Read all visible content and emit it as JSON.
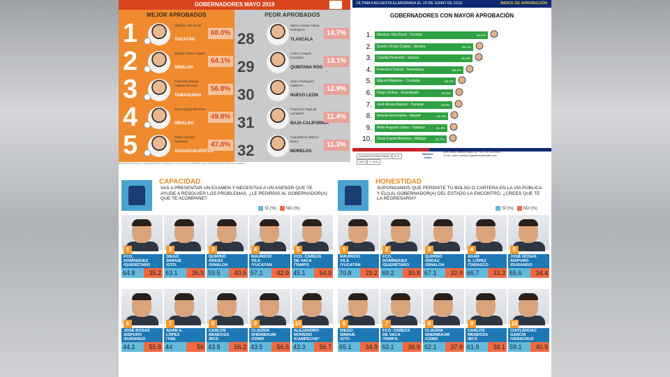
{
  "top_left": {
    "title": "GOBERNADORES MAYO 2019",
    "best_title": "MEJOR APROBADOS",
    "worst_title": "PEOR APROBADOS",
    "best": [
      {
        "rank": "1",
        "name": "Mauricio Vila Dosal",
        "state": "YUCATÁN",
        "pct": "68.0%"
      },
      {
        "rank": "2",
        "name": "Quirino Ordaz Coppel",
        "state": "SINALOA",
        "pct": "64.1%"
      },
      {
        "rank": "3",
        "name": "Francisco García Cabeza de Vaca",
        "state": "TAMAULIPAS",
        "pct": "56.8%"
      },
      {
        "rank": "4",
        "name": "Omar Fayad Meneses",
        "state": "HIDALGO",
        "pct": "49.8%"
      },
      {
        "rank": "5",
        "name": "Martín Orozco Sandoval",
        "state": "AGUASCALIENTES",
        "pct": "47.0%"
      }
    ],
    "worst": [
      {
        "rank": "28",
        "name": "Marco Antonio Mena Rodríguez",
        "state": "TLAXCALA",
        "pct": "14.7%"
      },
      {
        "rank": "29",
        "name": "Carlos Joaquín González",
        "state": "QUINTANA ROO",
        "pct": "13.1%"
      },
      {
        "rank": "30",
        "name": "Jaime Rodríguez Calderón",
        "state": "NUEVO LEÓN",
        "pct": "12.9%"
      },
      {
        "rank": "31",
        "name": "Francisco Vega de Lamadrid",
        "state": "BAJA CALIFORNIA",
        "pct": "11.4%"
      },
      {
        "rank": "32",
        "name": "Cuauhtémoc Blanco Bravo",
        "state": "MORELOS",
        "pct": "11.3%"
      }
    ],
    "footer": "El presente documento es propiedad de Arias Consultores, no se permite su publicación total o parcial sin la autorización del propietario."
  },
  "top_right": {
    "header_left": "ÚLTIMA ENCUESTA ELABORADA EL 15 DE JUNIO DE 2019",
    "header_right": "ÍNDICE DE APROBACIÓN",
    "title": "GOBERNADORES CON MAYOR APROBACIÓN",
    "rows": [
      {
        "n": "1.",
        "label": "Mauricio Vila Dosal - Yucatán",
        "pct": "64.0%"
      },
      {
        "n": "2.",
        "label": "Quirino Ordaz Coppel - Sinaloa",
        "pct": "55.7%"
      },
      {
        "n": "3.",
        "label": "Claudia Pavlovich - Sonora",
        "pct": "55.4%"
      },
      {
        "n": "4.",
        "label": "Francisco García - Tamaulipas",
        "pct": "50.1%"
      },
      {
        "n": "5.",
        "label": "Miguel Riquelme - Coahuila",
        "pct": "45.7%"
      },
      {
        "n": "6.",
        "label": "Diego Sinhue - Guanajuato",
        "pct": "44.2%"
      },
      {
        "n": "7.",
        "label": "José Rosas Aispuro - Durango",
        "pct": "43.9%"
      },
      {
        "n": "8.",
        "label": "Antonio Echevarría - Nayarit",
        "pct": "41.6%"
      },
      {
        "n": "9.",
        "label": "Adán Augusto López - Tabasco",
        "pct": "41.2%"
      },
      {
        "n": "10.",
        "label": "Omar Fayad Meneses - Hidalgo",
        "pct": "40.7%"
      }
    ],
    "table": {
      "c1": "ENCUESTAS REALIZADAS",
      "c2": "M. E.",
      "v1": "1000",
      "v2": "+/- 3.4%"
    },
    "brand": "Massive Caller",
    "contact1": "Ariel Carlos Campos Riojas Cel: +52 1 81 2000 6062",
    "contact2": "Correo: carlos.campos.riojas@massivecaller.com"
  },
  "capacidad": {
    "title": "CAPACIDAD",
    "question": "VAS A PRESENTAR UN EXAMEN Y NECESITAS A UN ASESOR QUE TE AYUDE A RESOLVER LOS PROBLEMAS, ¿LE PEDIRÍAS AL GOBERNADOR(A) QUE TE ACOMPAÑE?",
    "legend_si": "SÍ (%)",
    "legend_no": "NO (%)",
    "cards": [
      {
        "rank": "1",
        "name1": "FCO.",
        "name2": "DOMÍNGUEZ",
        "state": "/QUERÉTARO",
        "si": "64.8",
        "no": "35.2"
      },
      {
        "rank": "2",
        "name1": "DIEGO",
        "name2": "SINHUE",
        "state": "/GTO.",
        "si": "63.1",
        "no": "36.9"
      },
      {
        "rank": "3",
        "name1": "QUIRINO",
        "name2": "ORDAZ",
        "state": "/SINALOA",
        "si": "59.5",
        "no": "40.5"
      },
      {
        "rank": "4",
        "name1": "MAURICIO",
        "name2": "VILA",
        "state": "/YUCATÁN",
        "si": "57.1",
        "no": "42.9"
      },
      {
        "rank": "5",
        "name1": "FCO. CABEZA",
        "name2": "DE VACA",
        "state": "/TAMPS.",
        "si": "45.1",
        "no": "54.9"
      },
      {
        "rank": "6",
        "name1": "JOSÉ ROSAS",
        "name2": "AISPURO",
        "state": "/DURANGO",
        "si": "44.2",
        "no": "55.8"
      },
      {
        "rank": "7",
        "name1": "ADÁN A.",
        "name2": "LÓPEZ",
        "state": "/TAB.",
        "si": "44",
        "no": "56"
      },
      {
        "rank": "8",
        "name1": "CARLOS",
        "name2": "MENDOZA",
        "state": "/BCS",
        "si": "43.8",
        "no": "56.2"
      },
      {
        "rank": "9",
        "name1": "CLAUDIA",
        "name2": "SHEINBAUM",
        "state": "/CDMX",
        "si": "43.5",
        "no": "56.5"
      },
      {
        "rank": "10",
        "name1": "ALEJANDRO",
        "name2": "MORENO",
        "state": "/CAMPECHE*",
        "si": "43.3",
        "no": "56.7"
      }
    ]
  },
  "honestidad": {
    "title": "HONESTIDAD",
    "question": "SUPONGAMOS QUE PERDISTE TU BOLSO O CARTERA EN LA VÍA PÚBLICA Y EL(LA) GOBERNADOR(A) DEL ESTADO LA ENCONTRÓ, ¿CREES QUE TE LA REGRESARÍA?",
    "legend_si": "SÍ (%)",
    "legend_no": "NO (%)",
    "cards": [
      {
        "rank": "1",
        "name1": "MAURICIO",
        "name2": "VILA",
        "state": "/YUCATÁN",
        "si": "70.8",
        "no": "29.2"
      },
      {
        "rank": "2",
        "name1": "FCO.",
        "name2": "DOMÍNGUEZ",
        "state": "/QUERÉTARO",
        "si": "69.2",
        "no": "30.8"
      },
      {
        "rank": "3",
        "name1": "QUIRINO",
        "name2": "ORDAZ",
        "state": "/SINALOA",
        "si": "67.1",
        "no": "32.9"
      },
      {
        "rank": "4",
        "name1": "ADÁN",
        "name2": "A. LÓPEZ",
        "state": "/TABASCO",
        "si": "66.7",
        "no": "33.3"
      },
      {
        "rank": "5",
        "name1": "JOSÉ ROSAS",
        "name2": "AISPURO",
        "state": "/DURANGO",
        "si": "65.6",
        "no": "34.4"
      },
      {
        "rank": "6",
        "name1": "DIEGO",
        "name2": "SINHUE",
        "state": "/GTO.",
        "si": "65.1",
        "no": "34.9"
      },
      {
        "rank": "7",
        "name1": "FCO. CABEZA",
        "name2": "DE VACA",
        "state": "/TAMPS.",
        "si": "63.1",
        "no": "36.9"
      },
      {
        "rank": "8",
        "name1": "CLAUDIA",
        "name2": "SHEINBAUM",
        "state": "/CDMX",
        "si": "62.1",
        "no": "37.9"
      },
      {
        "rank": "9",
        "name1": "CARLOS",
        "name2": "MENDOZA",
        "state": "/BCS",
        "si": "61.9",
        "no": "38.1"
      },
      {
        "rank": "10",
        "name1": "CUITLÁHUAC",
        "name2": "GARCÍA",
        "state": "/VERACRUZ",
        "si": "59.1",
        "no": "40.9"
      }
    ]
  },
  "colors": {
    "orange": "#ef8a2f",
    "navy": "#0e2a72",
    "green": "#2fa043",
    "blue": "#1d78b4",
    "si": "#64b9dd",
    "no": "#ef6a43"
  }
}
